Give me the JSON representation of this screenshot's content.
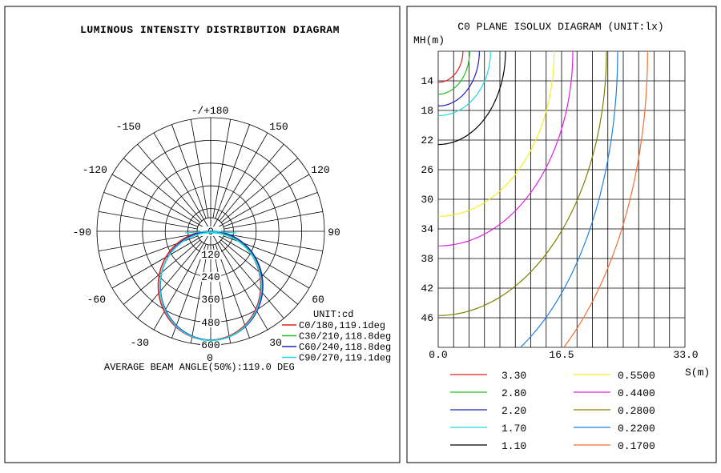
{
  "colors": {
    "C0": "#e02020",
    "C30": "#20c020",
    "C60": "#2020c0",
    "C90": "#20d8e0",
    "iso": {
      "3.30": "#e02020",
      "2.80": "#20c020",
      "2.20": "#2020c0",
      "1.70": "#20d8e0",
      "1.10": "#000000",
      "0.5500": "#f0f020",
      "0.4400": "#e020e0",
      "0.2800": "#808000",
      "0.2200": "#2080e0",
      "0.1700": "#f07030"
    }
  },
  "chart_data": [
    {
      "type": "polar",
      "title": "LUMINOUS INTENSITY DISTRIBUTION DIAGRAM",
      "unit_label": "UNIT:cd",
      "angle_labels": [
        "-/+180",
        "-150",
        "150",
        "-120",
        "120",
        "-90",
        "90",
        "-60",
        "60",
        "-30",
        "30",
        "0"
      ],
      "radial_labels": [
        "0",
        "120",
        "240",
        "360",
        "480",
        "600"
      ],
      "radial_max": 600,
      "series": [
        {
          "name": "C0/180,119.1deg",
          "key": "C0"
        },
        {
          "name": "C30/210,118.8deg",
          "key": "C30"
        },
        {
          "name": "C60/240,118.8deg",
          "key": "C60"
        },
        {
          "name": "C90/270,119.1deg",
          "key": "C90"
        }
      ],
      "beam_angle_text": "AVERAGE BEAM ANGLE(50%):119.0 DEG"
    },
    {
      "type": "line",
      "title": "C0 PLANE ISOLUX DIAGRAM (UNIT:lx)",
      "ylabel": "MH(m)",
      "xlabel": "S(m)",
      "x_ticks": [
        "0.0",
        "16.5",
        "33.0"
      ],
      "y_ticks": [
        "14",
        "18",
        "22",
        "26",
        "30",
        "34",
        "38",
        "42",
        "46"
      ],
      "xlim": [
        0,
        33
      ],
      "ylim": [
        10,
        50
      ],
      "y_inverted": true,
      "series": [
        {
          "name": "3.30",
          "ymax": 14.2,
          "xmax": 3.3
        },
        {
          "name": "2.80",
          "ymax": 15.8,
          "xmax": 4.2
        },
        {
          "name": "2.20",
          "ymax": 17.4,
          "xmax": 5.5
        },
        {
          "name": "1.70",
          "ymax": 18.7,
          "xmax": 7.0
        },
        {
          "name": "1.10",
          "ymax": 22.6,
          "xmax": 9.0
        },
        {
          "name": "0.5500",
          "ymax": 32.3,
          "xmax": 15.5
        },
        {
          "name": "0.4400",
          "ymax": 36.3,
          "xmax": 18.0
        },
        {
          "name": "0.2800",
          "ymax": 45.7,
          "xmax": 22.5
        },
        {
          "name": "0.2200",
          "ymax": 55.0,
          "xmax": 24.0
        },
        {
          "name": "0.1700",
          "ymax": 60.0,
          "xmax": 28.0
        }
      ]
    }
  ]
}
